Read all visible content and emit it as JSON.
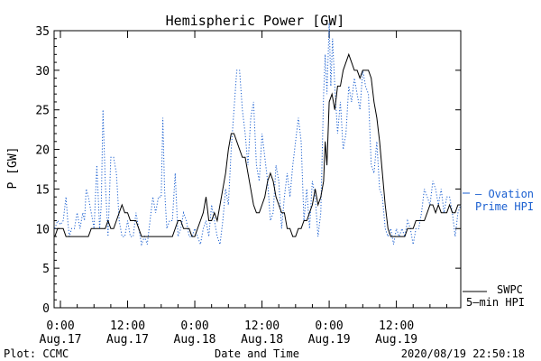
{
  "chart_data": {
    "type": "line",
    "title": "Hemispheric Power [GW]",
    "xlabel": "Date and Time",
    "ylabel": "P [GW]",
    "ylim": [
      0,
      35
    ],
    "xlim_hours": [
      -1,
      48
    ],
    "y_ticks": [
      0,
      5,
      10,
      15,
      20,
      25,
      30,
      35
    ],
    "x_ticks": [
      {
        "h": 0,
        "time": "0:00",
        "date": "Aug.17"
      },
      {
        "h": 12,
        "time": "12:00",
        "date": "Aug.17"
      },
      {
        "h": 24,
        "time": "0:00",
        "date": "Aug.18"
      },
      {
        "h": 36,
        "time": "12:00",
        "date": "Aug.18"
      },
      {
        "h": 48,
        "time": "0:00",
        "date": "Aug.19"
      },
      {
        "h": 60,
        "time": "12:00",
        "date": "Aug.19"
      }
    ],
    "grid": false,
    "legend_position": "right",
    "series": [
      {
        "name": "Ovation Prime HPI",
        "color": "#1a5fd0",
        "style": "dotted",
        "points": [
          [
            -1,
            10
          ],
          [
            -0.5,
            11
          ],
          [
            0,
            10.5
          ],
          [
            0.5,
            11
          ],
          [
            1,
            14
          ],
          [
            1.3,
            11
          ],
          [
            1.6,
            9
          ],
          [
            2,
            10
          ],
          [
            2.5,
            10
          ],
          [
            3,
            12
          ],
          [
            3.5,
            10
          ],
          [
            4,
            12
          ],
          [
            4.3,
            11
          ],
          [
            4.6,
            15
          ],
          [
            5,
            14
          ],
          [
            5.5,
            12
          ],
          [
            6,
            10
          ],
          [
            6.5,
            18
          ],
          [
            7,
            10
          ],
          [
            7.3,
            13
          ],
          [
            7.6,
            25
          ],
          [
            8,
            16
          ],
          [
            8.5,
            9
          ],
          [
            9,
            19
          ],
          [
            9.5,
            19
          ],
          [
            10,
            17
          ],
          [
            10.5,
            11
          ],
          [
            11,
            9
          ],
          [
            11.5,
            9
          ],
          [
            12,
            11
          ],
          [
            12.5,
            9
          ],
          [
            13,
            9
          ],
          [
            13.5,
            12
          ],
          [
            14,
            10
          ],
          [
            14.5,
            8
          ],
          [
            15,
            9
          ],
          [
            15.5,
            8
          ],
          [
            16,
            11
          ],
          [
            16.5,
            14
          ],
          [
            17,
            12
          ],
          [
            17.5,
            14
          ],
          [
            18,
            14
          ],
          [
            18.3,
            24
          ],
          [
            18.6,
            15
          ],
          [
            19,
            10
          ],
          [
            19.5,
            11
          ],
          [
            20,
            11
          ],
          [
            20.5,
            17
          ],
          [
            21,
            9
          ],
          [
            21.5,
            10
          ],
          [
            22,
            12
          ],
          [
            22.5,
            11
          ],
          [
            23,
            9
          ],
          [
            23.5,
            9
          ],
          [
            24,
            10
          ],
          [
            24.5,
            9
          ],
          [
            25,
            8
          ],
          [
            25.5,
            10
          ],
          [
            26,
            11
          ],
          [
            26.5,
            9
          ],
          [
            27,
            13
          ],
          [
            27.5,
            11
          ],
          [
            28,
            9
          ],
          [
            28.5,
            8
          ],
          [
            29,
            11
          ],
          [
            29.5,
            15
          ],
          [
            30,
            13
          ],
          [
            30.5,
            20
          ],
          [
            31,
            25
          ],
          [
            31.5,
            30
          ],
          [
            32,
            30
          ],
          [
            32.5,
            25
          ],
          [
            33,
            22
          ],
          [
            33.5,
            18
          ],
          [
            34,
            24
          ],
          [
            34.5,
            26
          ],
          [
            35,
            18
          ],
          [
            35.5,
            16
          ],
          [
            36,
            22
          ],
          [
            36.5,
            19
          ],
          [
            37,
            16
          ],
          [
            37.5,
            11
          ],
          [
            38,
            12
          ],
          [
            38.5,
            18
          ],
          [
            39,
            16
          ],
          [
            39.5,
            10
          ],
          [
            40,
            14
          ],
          [
            40.5,
            17
          ],
          [
            41,
            14
          ],
          [
            41.5,
            18
          ],
          [
            42,
            21
          ],
          [
            42.5,
            24
          ],
          [
            43,
            21
          ],
          [
            43.5,
            11
          ],
          [
            44,
            15
          ],
          [
            44.5,
            10
          ],
          [
            45,
            16
          ],
          [
            45.5,
            14
          ],
          [
            46,
            9
          ],
          [
            46.5,
            12
          ],
          [
            47,
            27
          ],
          [
            47.3,
            32
          ],
          [
            47.6,
            27
          ],
          [
            48,
            36
          ],
          [
            48.3,
            28
          ],
          [
            48.6,
            34
          ],
          [
            49,
            28
          ],
          [
            49.5,
            22
          ],
          [
            50,
            26
          ],
          [
            50.5,
            20
          ],
          [
            51,
            22
          ],
          [
            51.5,
            28
          ],
          [
            52,
            26
          ],
          [
            52.5,
            29
          ],
          [
            53,
            27
          ],
          [
            53.5,
            25
          ],
          [
            54,
            30
          ],
          [
            54.5,
            28
          ],
          [
            55,
            27
          ],
          [
            55.5,
            18
          ],
          [
            56,
            17
          ],
          [
            56.5,
            21
          ],
          [
            57,
            15
          ],
          [
            57.5,
            14
          ],
          [
            58,
            10
          ],
          [
            58.5,
            9
          ],
          [
            59,
            10
          ],
          [
            59.5,
            8
          ],
          [
            60,
            10
          ],
          [
            60.5,
            9
          ],
          [
            61,
            10
          ],
          [
            61.5,
            9
          ],
          [
            62,
            11
          ],
          [
            62.5,
            10
          ],
          [
            63,
            8
          ],
          [
            63.5,
            10
          ],
          [
            64,
            10
          ],
          [
            64.5,
            12
          ],
          [
            65,
            15
          ],
          [
            65.5,
            14
          ],
          [
            66,
            13
          ],
          [
            66.5,
            16
          ],
          [
            67,
            15
          ],
          [
            67.5,
            13
          ],
          [
            68,
            15
          ],
          [
            68.5,
            12
          ],
          [
            69,
            14
          ],
          [
            69.5,
            14
          ],
          [
            70,
            12
          ],
          [
            70.5,
            9
          ],
          [
            71,
            12
          ],
          [
            71.5,
            13
          ]
        ]
      },
      {
        "name": "SWPC 5-min HPI",
        "color": "#000000",
        "style": "solid",
        "points": [
          [
            -1,
            9
          ],
          [
            -0.5,
            10
          ],
          [
            0,
            10
          ],
          [
            0.5,
            10
          ],
          [
            1,
            9
          ],
          [
            1.5,
            9
          ],
          [
            2,
            9
          ],
          [
            2.5,
            9
          ],
          [
            3,
            9
          ],
          [
            3.5,
            9
          ],
          [
            4,
            9
          ],
          [
            4.5,
            9
          ],
          [
            5,
            9
          ],
          [
            5.5,
            10
          ],
          [
            6,
            10
          ],
          [
            6.5,
            10
          ],
          [
            7,
            10
          ],
          [
            7.5,
            10
          ],
          [
            8,
            10
          ],
          [
            8.5,
            11
          ],
          [
            9,
            10
          ],
          [
            9.5,
            10
          ],
          [
            10,
            11
          ],
          [
            10.5,
            12
          ],
          [
            11,
            13
          ],
          [
            11.5,
            12
          ],
          [
            12,
            12
          ],
          [
            12.5,
            11
          ],
          [
            13,
            11
          ],
          [
            13.5,
            11
          ],
          [
            14,
            10
          ],
          [
            14.5,
            9
          ],
          [
            15,
            9
          ],
          [
            15.5,
            9
          ],
          [
            16,
            9
          ],
          [
            16.5,
            9
          ],
          [
            17,
            9
          ],
          [
            17.5,
            9
          ],
          [
            18,
            9
          ],
          [
            18.5,
            9
          ],
          [
            19,
            9
          ],
          [
            19.5,
            9
          ],
          [
            20,
            9
          ],
          [
            20.5,
            10
          ],
          [
            21,
            11
          ],
          [
            21.5,
            11
          ],
          [
            22,
            10
          ],
          [
            22.5,
            10
          ],
          [
            23,
            10
          ],
          [
            23.5,
            9
          ],
          [
            24,
            9
          ],
          [
            24.5,
            10
          ],
          [
            25,
            11
          ],
          [
            25.5,
            12
          ],
          [
            26,
            14
          ],
          [
            26.5,
            11
          ],
          [
            27,
            11
          ],
          [
            27.5,
            12
          ],
          [
            28,
            11
          ],
          [
            28.5,
            13
          ],
          [
            29,
            15
          ],
          [
            29.5,
            17
          ],
          [
            30,
            20
          ],
          [
            30.5,
            22
          ],
          [
            31,
            22
          ],
          [
            31.5,
            21
          ],
          [
            32,
            20
          ],
          [
            32.5,
            19
          ],
          [
            33,
            19
          ],
          [
            33.5,
            17
          ],
          [
            34,
            15
          ],
          [
            34.5,
            13
          ],
          [
            35,
            12
          ],
          [
            35.5,
            12
          ],
          [
            36,
            13
          ],
          [
            36.5,
            14
          ],
          [
            37,
            16
          ],
          [
            37.5,
            17
          ],
          [
            38,
            16
          ],
          [
            38.5,
            14
          ],
          [
            39,
            13
          ],
          [
            39.5,
            12
          ],
          [
            40,
            12
          ],
          [
            40.5,
            10
          ],
          [
            41,
            10
          ],
          [
            41.5,
            9
          ],
          [
            42,
            9
          ],
          [
            42.5,
            10
          ],
          [
            43,
            10
          ],
          [
            43.5,
            11
          ],
          [
            44,
            11
          ],
          [
            44.5,
            12
          ],
          [
            45,
            13
          ],
          [
            45.5,
            15
          ],
          [
            46,
            13
          ],
          [
            46.5,
            14
          ],
          [
            47,
            16
          ],
          [
            47.3,
            21
          ],
          [
            47.6,
            18
          ],
          [
            48,
            26
          ],
          [
            48.5,
            27
          ],
          [
            49,
            25
          ],
          [
            49.5,
            28
          ],
          [
            50,
            28
          ],
          [
            50.5,
            30
          ],
          [
            51,
            31
          ],
          [
            51.5,
            32
          ],
          [
            52,
            31
          ],
          [
            52.5,
            30
          ],
          [
            53,
            30
          ],
          [
            53.5,
            29
          ],
          [
            54,
            30
          ],
          [
            54.5,
            30
          ],
          [
            55,
            30
          ],
          [
            55.5,
            29
          ],
          [
            56,
            26
          ],
          [
            56.5,
            24
          ],
          [
            57,
            21
          ],
          [
            57.5,
            17
          ],
          [
            58,
            13
          ],
          [
            58.5,
            10
          ],
          [
            59,
            9
          ],
          [
            59.5,
            9
          ],
          [
            60,
            9
          ],
          [
            60.5,
            9
          ],
          [
            61,
            9
          ],
          [
            61.5,
            9
          ],
          [
            62,
            10
          ],
          [
            62.5,
            10
          ],
          [
            63,
            10
          ],
          [
            63.5,
            11
          ],
          [
            64,
            11
          ],
          [
            64.5,
            11
          ],
          [
            65,
            11
          ],
          [
            65.5,
            12
          ],
          [
            66,
            13
          ],
          [
            66.5,
            13
          ],
          [
            67,
            12
          ],
          [
            67.5,
            13
          ],
          [
            68,
            12
          ],
          [
            68.5,
            12
          ],
          [
            69,
            12
          ],
          [
            69.5,
            13
          ],
          [
            70,
            12
          ],
          [
            70.5,
            12
          ],
          [
            71,
            13
          ],
          [
            71.5,
            13
          ]
        ]
      }
    ],
    "legend": {
      "ovation_line1": "– Ovation",
      "ovation_line2": "Prime HPI",
      "swpc_line1": "SWPC",
      "swpc_line2": "5–min HPI"
    }
  },
  "footer": {
    "plot_credit": "Plot: CCMC",
    "timestamp": "2020/08/19 22:50:18"
  }
}
